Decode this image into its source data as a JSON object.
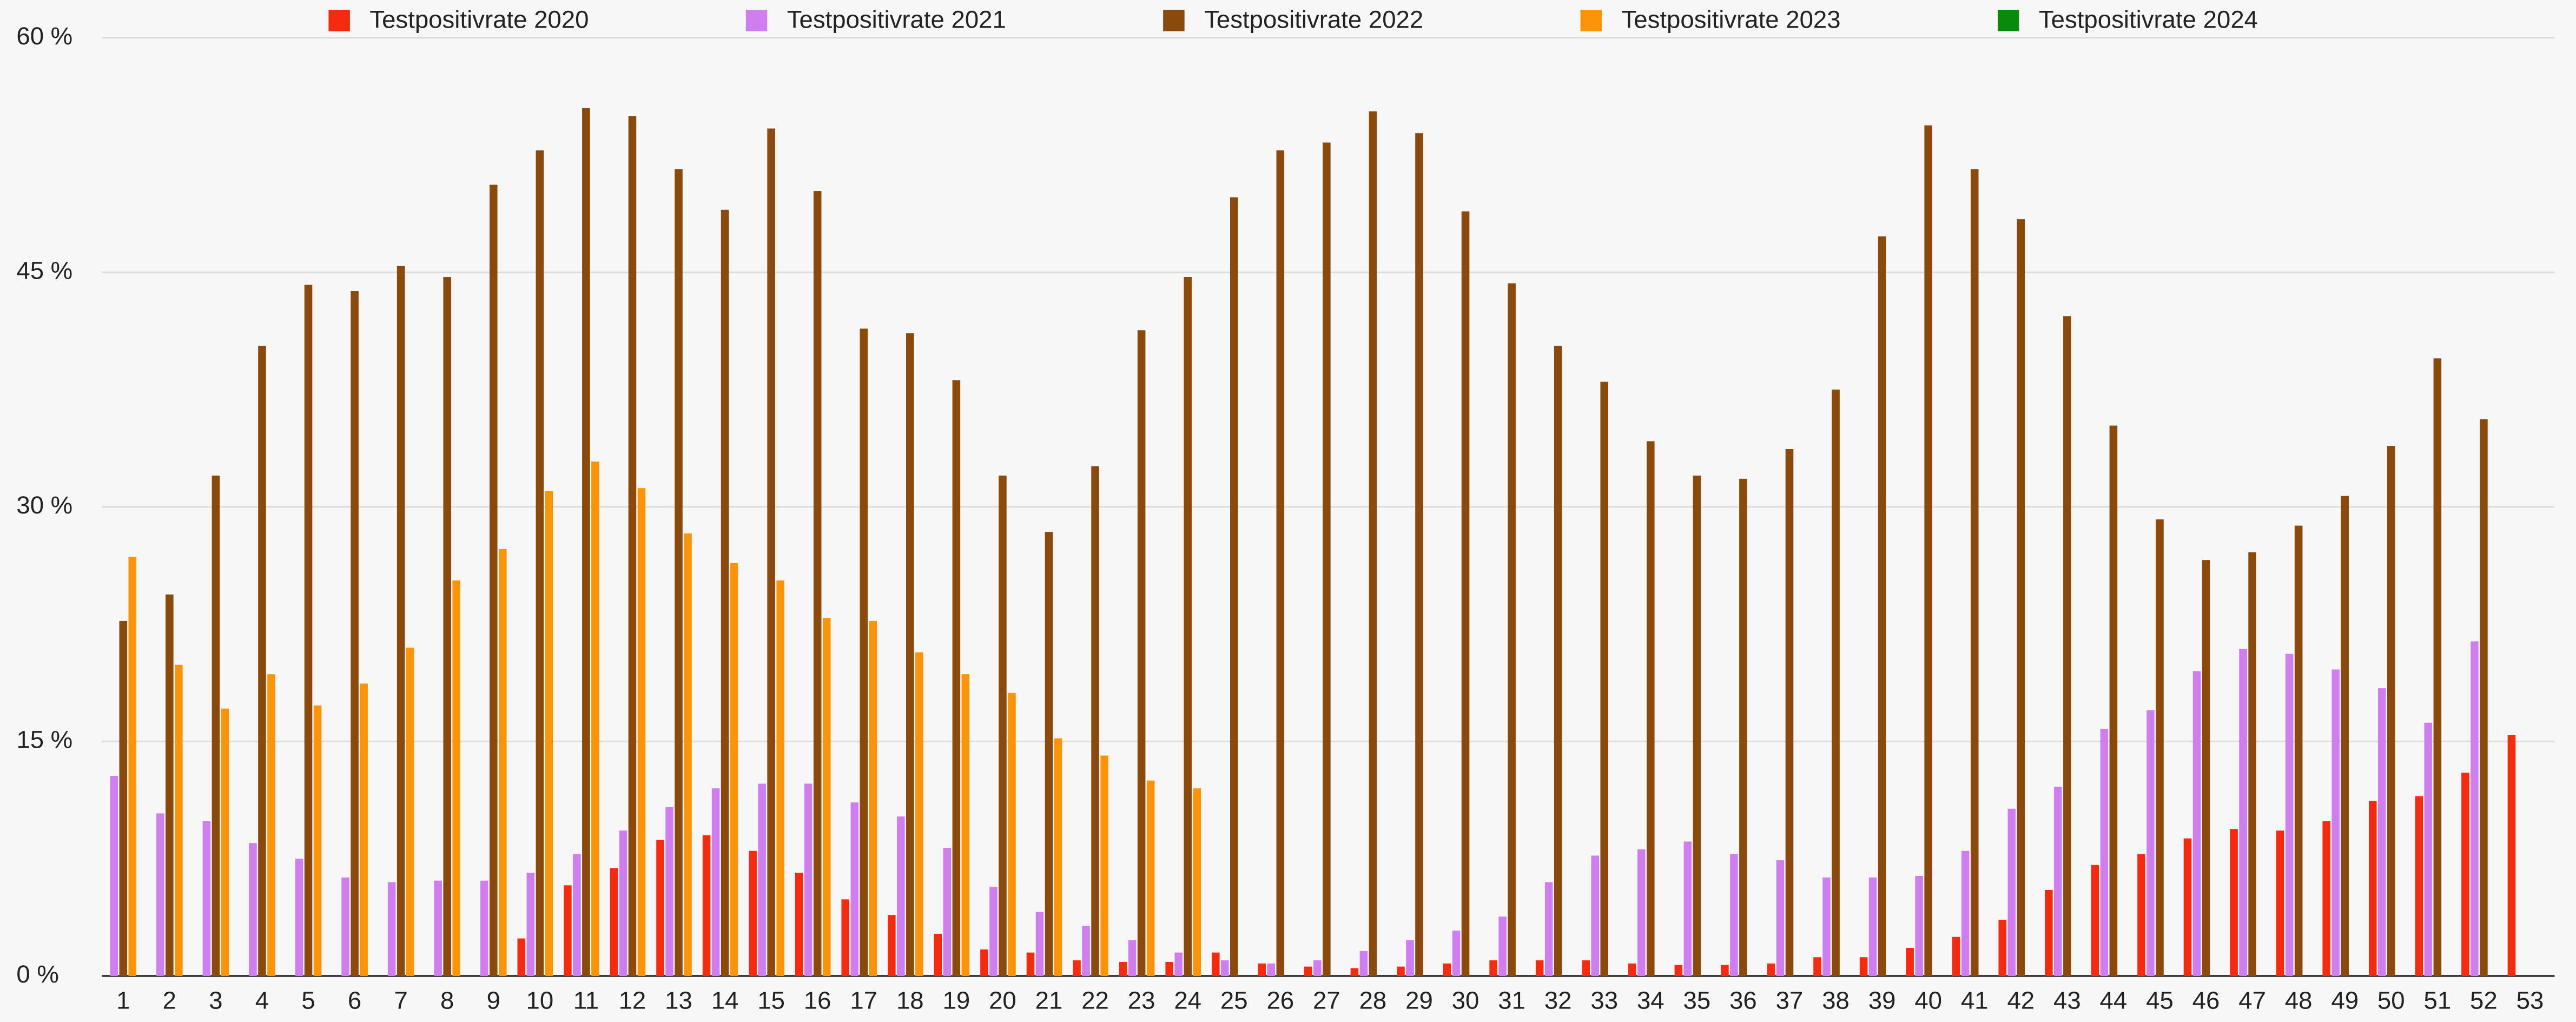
{
  "chart_data": {
    "type": "bar",
    "categories": [
      "1",
      "2",
      "3",
      "4",
      "5",
      "6",
      "7",
      "8",
      "9",
      "10",
      "11",
      "12",
      "13",
      "14",
      "15",
      "16",
      "17",
      "18",
      "19",
      "20",
      "21",
      "22",
      "23",
      "24",
      "25",
      "26",
      "27",
      "28",
      "29",
      "30",
      "31",
      "32",
      "33",
      "34",
      "35",
      "36",
      "37",
      "38",
      "39",
      "40",
      "41",
      "42",
      "43",
      "44",
      "45",
      "46",
      "47",
      "48",
      "49",
      "50",
      "51",
      "52",
      "53"
    ],
    "series": [
      {
        "name": "Testpositivrate 2020",
        "color": "#f52a0f",
        "values": [
          null,
          null,
          null,
          null,
          null,
          null,
          null,
          null,
          null,
          2.4,
          5.8,
          6.9,
          8.7,
          9,
          8,
          6.6,
          4.9,
          3.9,
          2.7,
          1.7,
          1.5,
          1,
          0.9,
          0.9,
          1.5,
          0.8,
          0.6,
          0.5,
          0.6,
          0.8,
          1,
          1,
          1,
          0.8,
          0.7,
          0.7,
          0.8,
          1.2,
          1.2,
          1.8,
          2.5,
          3.6,
          5.5,
          7.1,
          7.8,
          8.8,
          9.4,
          9.3,
          9.9,
          11.2,
          11.5,
          13,
          15.4
        ]
      },
      {
        "name": "Testpositivrate 2021",
        "color": "#cf7ef0",
        "values": [
          12.8,
          10.4,
          9.9,
          8.5,
          7.5,
          6.3,
          6,
          6.1,
          6.1,
          6.6,
          7.8,
          9.3,
          10.8,
          12,
          12.3,
          12.3,
          11.1,
          10.2,
          8.2,
          5.7,
          4.1,
          3.2,
          2.3,
          1.5,
          1,
          0.8,
          1,
          1.6,
          2.3,
          2.9,
          3.8,
          6,
          7.7,
          8.1,
          8.6,
          7.8,
          7.4,
          6.3,
          6.3,
          6.4,
          8,
          10.7,
          12.1,
          15.8,
          17,
          19.5,
          20.9,
          20.6,
          19.6,
          18.4,
          16.2,
          21.4,
          null
        ]
      },
      {
        "name": "Testpositivrate 2022",
        "color": "#8b4a0b",
        "values": [
          22.7,
          24.4,
          32,
          40.3,
          44.2,
          43.8,
          45.4,
          44.7,
          50.6,
          52.8,
          55.5,
          55,
          51.6,
          49,
          54.2,
          50.2,
          41.4,
          41.1,
          38.1,
          32,
          28.4,
          32.6,
          41.3,
          44.7,
          49.8,
          52.8,
          53.3,
          55.3,
          53.9,
          48.9,
          44.3,
          40.3,
          38,
          34.2,
          32,
          31.8,
          33.7,
          37.5,
          47.3,
          54.4,
          51.6,
          48.4,
          42.2,
          35.2,
          29.2,
          26.6,
          27.1,
          28.8,
          30.7,
          33.9,
          39.5,
          35.6,
          null
        ]
      },
      {
        "name": "Testpositivrate 2023",
        "color": "#fb9408",
        "values": [
          26.8,
          19.9,
          17.1,
          19.3,
          17.3,
          18.7,
          21,
          25.3,
          27.3,
          31,
          32.9,
          31.2,
          28.3,
          26.4,
          25.3,
          22.9,
          22.7,
          20.7,
          19.3,
          18.1,
          15.2,
          14.1,
          12.5,
          12,
          null,
          null,
          null,
          null,
          null,
          null,
          null,
          null,
          null,
          null,
          null,
          null,
          null,
          null,
          null,
          null,
          null,
          null,
          null,
          null,
          null,
          null,
          null,
          null,
          null,
          null,
          null,
          null,
          null
        ]
      },
      {
        "name": "Testpositivrate 2024",
        "color": "#0a8a0a",
        "values": [
          null,
          null,
          null,
          null,
          null,
          null,
          null,
          null,
          null,
          null,
          null,
          null,
          null,
          null,
          null,
          null,
          null,
          null,
          null,
          null,
          null,
          null,
          null,
          null,
          null,
          null,
          null,
          null,
          null,
          null,
          null,
          null,
          null,
          null,
          null,
          null,
          null,
          null,
          null,
          null,
          null,
          null,
          null,
          null,
          null,
          null,
          null,
          null,
          null,
          null,
          null,
          null,
          null
        ]
      }
    ],
    "ylim": [
      0,
      60
    ],
    "yticks": [
      {
        "value": 0,
        "label": "0 %"
      },
      {
        "value": 15,
        "label": "15 %"
      },
      {
        "value": 30,
        "label": "30 %"
      },
      {
        "value": 45,
        "label": "45 %"
      },
      {
        "value": 60,
        "label": "60 %"
      }
    ],
    "grid": true,
    "legend": "top"
  }
}
